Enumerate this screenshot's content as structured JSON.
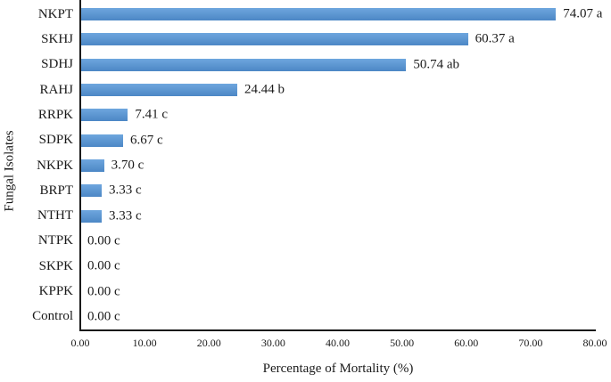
{
  "figure": {
    "background": "#ffffff"
  },
  "chart_data": {
    "type": "bar",
    "orientation": "horizontal",
    "title": "",
    "xlabel": "Percentage of Mortality (%)",
    "ylabel": "Fungal Isolates",
    "categories": [
      "NKPT",
      "SKHJ",
      "SDHJ",
      "RAHJ",
      "RRPK",
      "SDPK",
      "NKPK",
      "BRPT",
      "NTHT",
      "NTPK",
      "SKPK",
      "KPPK",
      "Control"
    ],
    "values": [
      74.07,
      60.37,
      50.74,
      24.44,
      7.41,
      6.67,
      3.7,
      3.33,
      3.33,
      0.0,
      0.0,
      0.0,
      0.0
    ],
    "data_labels": [
      "74.07 a",
      "60.37 a",
      "50.74 ab",
      "24.44 b",
      "7.41 c",
      "6.67 c",
      "3.70 c",
      "3.33 c",
      "3.33 c",
      "0.00 c",
      "0.00 c",
      "0.00 c",
      "0.00 c"
    ],
    "xlim": [
      0,
      80
    ],
    "x_ticks": [
      "0.00",
      "10.00",
      "20.00",
      "30.00",
      "40.00",
      "50.00",
      "60.00",
      "70.00",
      "80.00"
    ],
    "grid": false,
    "legend": false,
    "colors": {
      "bar_top": "#6EA6DE",
      "bar_bottom": "#4C87C5",
      "axis": "#1a1a1a",
      "text": "#1a1a1a"
    }
  }
}
